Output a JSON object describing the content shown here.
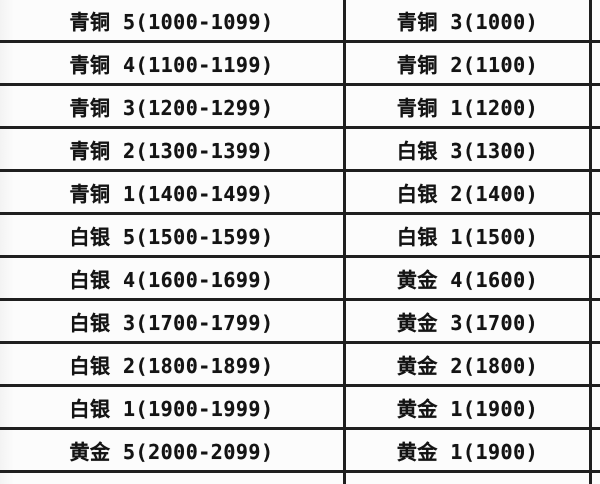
{
  "chart_data": {
    "type": "table",
    "columns": 2,
    "rows": [
      [
        "青铜 5(1000-1099)",
        "青铜 3(1000)"
      ],
      [
        "青铜 4(1100-1199)",
        "青铜 2(1100)"
      ],
      [
        "青铜 3(1200-1299)",
        "青铜 1(1200)"
      ],
      [
        "青铜 2(1300-1399)",
        "白银 3(1300)"
      ],
      [
        "青铜 1(1400-1499)",
        "白银 2(1400)"
      ],
      [
        "白银 5(1500-1599)",
        "白银 1(1500)"
      ],
      [
        "白银 4(1600-1699)",
        "黄金 4(1600)"
      ],
      [
        "白银 3(1700-1799)",
        "黄金 3(1700)"
      ],
      [
        "白银 2(1800-1899)",
        "黄金 2(1800)"
      ],
      [
        "白银 1(1900-1999)",
        "黄金 1(1900)"
      ],
      [
        "黄金 5(2000-2099)",
        "黄金 1(1900)"
      ]
    ]
  },
  "colors": {
    "border": "#1f1f1f",
    "background": "#fcfcfc",
    "text": "#141414"
  }
}
